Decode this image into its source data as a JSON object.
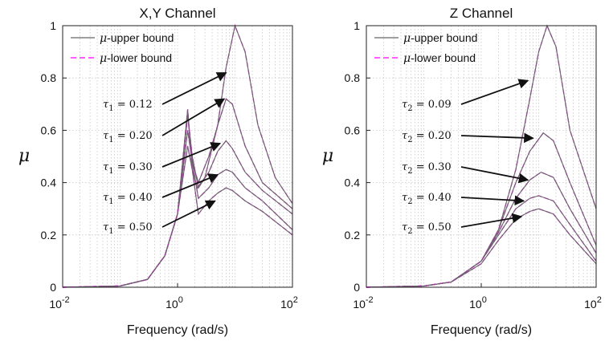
{
  "chart_data": [
    {
      "type": "line",
      "title": "X,Y Channel",
      "xlabel": "Frequency (rad/s)",
      "ylabel": "μ",
      "xscale": "log",
      "xlim": [
        0.01,
        100
      ],
      "ylim": [
        0,
        1
      ],
      "xticks": [
        0.01,
        1,
        100
      ],
      "xtick_labels": [
        {
          "base": "10",
          "exp": "-2"
        },
        {
          "base": "10",
          "exp": "0"
        },
        {
          "base": "10",
          "exp": "2"
        }
      ],
      "yticks": [
        0,
        0.2,
        0.4,
        0.6,
        0.8,
        1
      ],
      "ytick_labels": [
        "0",
        "0.2",
        "0.4",
        "0.6",
        "0.8",
        "1"
      ],
      "grid": true,
      "legend": {
        "placement": "top-left",
        "entries": [
          {
            "prefix": "μ",
            "text": "-upper bound",
            "color": "#666666",
            "dash": false
          },
          {
            "prefix": "μ",
            "text": "-lower bound",
            "color": "#ff00ff",
            "dash": true
          }
        ]
      },
      "series": [
        {
          "tau": 0.12,
          "points": [
            [
              0.01,
              0
            ],
            [
              0.1,
              0.005
            ],
            [
              0.3,
              0.03
            ],
            [
              0.6,
              0.12
            ],
            [
              1,
              0.28
            ],
            [
              1.5,
              0.54
            ],
            [
              1.8,
              0.45
            ],
            [
              2.2,
              0.38
            ],
            [
              3,
              0.42
            ],
            [
              5,
              0.62
            ],
            [
              7,
              0.84
            ],
            [
              10,
              1.0
            ],
            [
              15,
              0.9
            ],
            [
              25,
              0.62
            ],
            [
              50,
              0.42
            ],
            [
              100,
              0.32
            ]
          ]
        },
        {
          "tau": 0.2,
          "points": [
            [
              0.01,
              0
            ],
            [
              0.1,
              0.005
            ],
            [
              0.3,
              0.03
            ],
            [
              0.6,
              0.12
            ],
            [
              1,
              0.28
            ],
            [
              1.5,
              0.6
            ],
            [
              1.8,
              0.48
            ],
            [
              2.3,
              0.4
            ],
            [
              3.5,
              0.5
            ],
            [
              5,
              0.62
            ],
            [
              7,
              0.72
            ],
            [
              9,
              0.7
            ],
            [
              15,
              0.54
            ],
            [
              30,
              0.4
            ],
            [
              100,
              0.3
            ]
          ]
        },
        {
          "tau": 0.3,
          "points": [
            [
              0.01,
              0
            ],
            [
              0.1,
              0.005
            ],
            [
              0.3,
              0.03
            ],
            [
              0.6,
              0.12
            ],
            [
              1,
              0.28
            ],
            [
              1.5,
              0.66
            ],
            [
              1.8,
              0.5
            ],
            [
              2.3,
              0.38
            ],
            [
              3.5,
              0.44
            ],
            [
              5,
              0.52
            ],
            [
              7,
              0.56
            ],
            [
              9,
              0.53
            ],
            [
              15,
              0.44
            ],
            [
              30,
              0.37
            ],
            [
              100,
              0.28
            ]
          ]
        },
        {
          "tau": 0.4,
          "points": [
            [
              0.01,
              0
            ],
            [
              0.1,
              0.005
            ],
            [
              0.3,
              0.03
            ],
            [
              0.6,
              0.12
            ],
            [
              1,
              0.28
            ],
            [
              1.5,
              0.66
            ],
            [
              1.8,
              0.48
            ],
            [
              2.3,
              0.34
            ],
            [
              3.5,
              0.38
            ],
            [
              5,
              0.43
            ],
            [
              7,
              0.45
            ],
            [
              9,
              0.44
            ],
            [
              15,
              0.38
            ],
            [
              30,
              0.33
            ],
            [
              100,
              0.22
            ]
          ]
        },
        {
          "tau": 0.5,
          "points": [
            [
              0.01,
              0
            ],
            [
              0.1,
              0.005
            ],
            [
              0.3,
              0.03
            ],
            [
              0.6,
              0.12
            ],
            [
              1,
              0.28
            ],
            [
              1.5,
              0.68
            ],
            [
              1.8,
              0.45
            ],
            [
              2.3,
              0.28
            ],
            [
              3.5,
              0.33
            ],
            [
              5,
              0.36
            ],
            [
              7,
              0.38
            ],
            [
              9,
              0.37
            ],
            [
              15,
              0.33
            ],
            [
              30,
              0.29
            ],
            [
              100,
              0.2
            ]
          ]
        }
      ],
      "annotations": [
        {
          "sym": "τ",
          "sub": "1",
          "text": " = 0.12",
          "target": [
            7,
            0.82
          ]
        },
        {
          "sym": "τ",
          "sub": "1",
          "text": " = 0.20",
          "target": [
            6.5,
            0.72
          ]
        },
        {
          "sym": "τ",
          "sub": "1",
          "text": " = 0.30",
          "target": [
            5.5,
            0.55
          ]
        },
        {
          "sym": "τ",
          "sub": "1",
          "text": " = 0.40",
          "target": [
            5,
            0.43
          ]
        },
        {
          "sym": "τ",
          "sub": "1",
          "text": " = 0.50",
          "target": [
            4.5,
            0.33
          ]
        }
      ]
    },
    {
      "type": "line",
      "title": "Z Channel",
      "xlabel": "Frequency (rad/s)",
      "ylabel": "μ",
      "xscale": "log",
      "xlim": [
        0.01,
        100
      ],
      "ylim": [
        0,
        1
      ],
      "xticks": [
        0.01,
        1,
        100
      ],
      "xtick_labels": [
        {
          "base": "10",
          "exp": "-2"
        },
        {
          "base": "10",
          "exp": "0"
        },
        {
          "base": "10",
          "exp": "2"
        }
      ],
      "yticks": [
        0,
        0.2,
        0.4,
        0.6,
        0.8,
        1
      ],
      "ytick_labels": [
        "0",
        "0.2",
        "0.4",
        "0.6",
        "0.8",
        "1"
      ],
      "grid": true,
      "legend": {
        "placement": "top-left",
        "entries": [
          {
            "prefix": "μ",
            "text": "-upper bound",
            "color": "#666666",
            "dash": false
          },
          {
            "prefix": "μ",
            "text": "-lower bound",
            "color": "#ff00ff",
            "dash": true
          }
        ]
      },
      "series": [
        {
          "tau": 0.09,
          "points": [
            [
              0.01,
              0
            ],
            [
              0.1,
              0.005
            ],
            [
              0.3,
              0.02
            ],
            [
              1,
              0.1
            ],
            [
              2,
              0.22
            ],
            [
              4,
              0.45
            ],
            [
              7,
              0.72
            ],
            [
              10,
              0.9
            ],
            [
              14,
              1.0
            ],
            [
              20,
              0.92
            ],
            [
              35,
              0.6
            ],
            [
              100,
              0.3
            ]
          ]
        },
        {
          "tau": 0.2,
          "points": [
            [
              0.01,
              0
            ],
            [
              0.1,
              0.005
            ],
            [
              0.3,
              0.02
            ],
            [
              1,
              0.1
            ],
            [
              2,
              0.22
            ],
            [
              4,
              0.4
            ],
            [
              7,
              0.52
            ],
            [
              12,
              0.59
            ],
            [
              18,
              0.56
            ],
            [
              35,
              0.4
            ],
            [
              100,
              0.16
            ]
          ]
        },
        {
          "tau": 0.3,
          "points": [
            [
              0.01,
              0
            ],
            [
              0.1,
              0.005
            ],
            [
              0.3,
              0.02
            ],
            [
              1,
              0.1
            ],
            [
              2,
              0.21
            ],
            [
              4,
              0.34
            ],
            [
              7,
              0.41
            ],
            [
              11,
              0.44
            ],
            [
              18,
              0.42
            ],
            [
              35,
              0.3
            ],
            [
              100,
              0.13
            ]
          ]
        },
        {
          "tau": 0.4,
          "points": [
            [
              0.01,
              0
            ],
            [
              0.1,
              0.005
            ],
            [
              0.3,
              0.02
            ],
            [
              1,
              0.1
            ],
            [
              2,
              0.2
            ],
            [
              4,
              0.3
            ],
            [
              7,
              0.34
            ],
            [
              10,
              0.35
            ],
            [
              18,
              0.33
            ],
            [
              35,
              0.24
            ],
            [
              100,
              0.1
            ]
          ]
        },
        {
          "tau": 0.5,
          "points": [
            [
              0.01,
              0
            ],
            [
              0.1,
              0.005
            ],
            [
              0.3,
              0.02
            ],
            [
              1,
              0.09
            ],
            [
              2,
              0.18
            ],
            [
              4,
              0.26
            ],
            [
              7,
              0.29
            ],
            [
              10,
              0.3
            ],
            [
              18,
              0.28
            ],
            [
              35,
              0.2
            ],
            [
              100,
              0.09
            ]
          ]
        }
      ],
      "annotations": [
        {
          "sym": "τ",
          "sub": "2",
          "text": " = 0.09",
          "target": [
            6.5,
            0.79
          ]
        },
        {
          "sym": "τ",
          "sub": "2",
          "text": " = 0.20",
          "target": [
            8,
            0.57
          ]
        },
        {
          "sym": "τ",
          "sub": "2",
          "text": " = 0.30",
          "target": [
            6.5,
            0.41
          ]
        },
        {
          "sym": "τ",
          "sub": "2",
          "text": " = 0.40",
          "target": [
            5.5,
            0.33
          ]
        },
        {
          "sym": "τ",
          "sub": "2",
          "text": " = 0.50",
          "target": [
            5,
            0.27
          ]
        }
      ]
    }
  ],
  "colors": {
    "upper": "#666666",
    "lower": "#ff00ff",
    "axis": "#222222",
    "grid": "#c8c8c8"
  }
}
